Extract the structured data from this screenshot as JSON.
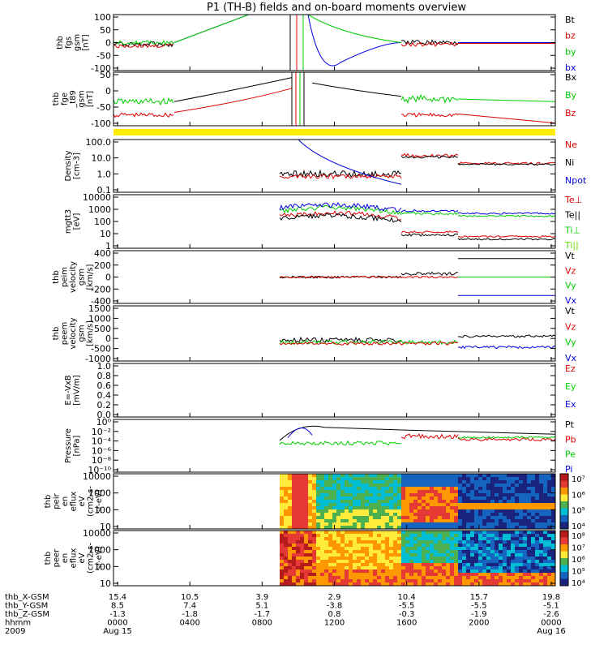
{
  "title": "P1 (TH-B) fields and on-board moments overview",
  "colors": {
    "black": "#000000",
    "red": "#dd0000",
    "green": "#00cc00",
    "blue": "#0000dd",
    "lime": "#66dd00",
    "yellow": "#ffee00"
  },
  "chart_data": [
    {
      "type": "line",
      "id": "fgs",
      "ylabel": [
        "thb",
        "fgs",
        "gsm",
        "[nT]"
      ],
      "yticks": [
        "100",
        "50",
        "0",
        "-50",
        "-100"
      ],
      "ylim": [
        -100,
        100
      ],
      "legend": [
        {
          "label": "Bt",
          "color": "black"
        },
        {
          "label": "bz",
          "color": "red"
        },
        {
          "label": "by",
          "color": "green"
        },
        {
          "label": "bx",
          "color": "blue"
        }
      ]
    },
    {
      "type": "line",
      "id": "fge",
      "ylabel": [
        "thb",
        "fge",
        "_t89",
        "gsm",
        "[nT]"
      ],
      "yticks": [
        "50",
        "0",
        "-50",
        "-100"
      ],
      "ylim": [
        -130,
        100
      ],
      "legend": [
        {
          "label": "Bx",
          "color": "black"
        },
        {
          "label": "By",
          "color": "green"
        },
        {
          "label": "Bz",
          "color": "red"
        }
      ]
    },
    {
      "type": "bar",
      "id": "flag",
      "note": "mode bar"
    },
    {
      "type": "line",
      "id": "density",
      "ylabel": [
        "Density",
        "[cm-3]"
      ],
      "yticks": [
        "100.0",
        "10.0",
        "1.0",
        "0.1"
      ],
      "ylog": true,
      "legend": [
        {
          "label": "Ne",
          "color": "red"
        },
        {
          "label": "Ni",
          "color": "black"
        },
        {
          "label": "Npot",
          "color": "blue"
        }
      ]
    },
    {
      "type": "line",
      "id": "temp",
      "ylabel": [
        "mgtt3",
        "[eV]"
      ],
      "yticks": [
        "10000",
        "1000",
        "100",
        "10",
        "1"
      ],
      "ylog": true,
      "legend": [
        {
          "label": "Te⊥",
          "color": "red"
        },
        {
          "label": "Te||",
          "color": "black"
        },
        {
          "label": "Ti⊥",
          "color": "green"
        },
        {
          "label": "Ti||",
          "color": "lime"
        }
      ]
    },
    {
      "type": "line",
      "id": "peim_vel",
      "ylabel": [
        "thb",
        "peim",
        "velocity",
        "gsm",
        "[km/s]"
      ],
      "yticks": [
        "400",
        "200",
        "0",
        "-200",
        "-400"
      ],
      "ylim": [
        -400,
        400
      ],
      "legend": [
        {
          "label": "Vt",
          "color": "black"
        },
        {
          "label": "Vz",
          "color": "red"
        },
        {
          "label": "Vy",
          "color": "green"
        },
        {
          "label": "Vx",
          "color": "blue"
        }
      ]
    },
    {
      "type": "line",
      "id": "peem_vel",
      "ylabel": [
        "thb",
        "peem",
        "velocity",
        "gsm",
        "[km/s]"
      ],
      "yticks": [
        "1500",
        "1000",
        "500",
        "0",
        "-500",
        "-1000"
      ],
      "ylim": [
        -1000,
        1500
      ],
      "legend": [
        {
          "label": "Vt",
          "color": "black"
        },
        {
          "label": "Vz",
          "color": "red"
        },
        {
          "label": "Vy",
          "color": "green"
        },
        {
          "label": "Vx",
          "color": "blue"
        }
      ]
    },
    {
      "type": "line",
      "id": "efield",
      "ylabel": [
        "E=-VxB",
        "[mV/m]"
      ],
      "yticks": [
        "1.0",
        "0.8",
        "0.6",
        "0.4",
        "0.2",
        "0.0"
      ],
      "ylim": [
        0,
        1
      ],
      "legend": [
        {
          "label": "Ez",
          "color": "red"
        },
        {
          "label": "Ey",
          "color": "green"
        },
        {
          "label": "Ex",
          "color": "blue"
        }
      ]
    },
    {
      "type": "line",
      "id": "pressure",
      "ylabel": [
        "Pressure",
        "[nPa]"
      ],
      "yticks": [
        "10⁰",
        "10⁻²",
        "10⁻⁴",
        "10⁻⁶",
        "10⁻⁸",
        "10⁻¹⁰"
      ],
      "ylog": true,
      "legend": [
        {
          "label": "Pt",
          "color": "black"
        },
        {
          "label": "Pb",
          "color": "red"
        },
        {
          "label": "Pe",
          "color": "green"
        },
        {
          "label": "Pi",
          "color": "blue"
        }
      ]
    },
    {
      "type": "heatmap",
      "id": "peir",
      "ylabel": [
        "thb",
        "peir",
        "en",
        "eflux",
        "eV",
        "(cm2-s-",
        "sr-eV)"
      ],
      "yticks": [
        "10000",
        "1000",
        "100",
        "10"
      ],
      "colorbar": [
        "10⁷",
        "10⁶",
        "10⁵",
        "10⁴"
      ]
    },
    {
      "type": "heatmap",
      "id": "peer",
      "ylabel": [
        "thb",
        "peer",
        "en",
        "eflux",
        "eV",
        "(cm2-s-",
        "sr-eV)"
      ],
      "yticks": [
        "10000",
        "1000",
        "100",
        "10"
      ],
      "colorbar": [
        "10⁸",
        "10⁷",
        "10⁶",
        "10⁵",
        "10⁴"
      ]
    }
  ],
  "xaxis": {
    "rows": [
      {
        "label": "thb_X-GSM",
        "values": [
          "15.4",
          "10.5",
          "3.9",
          "2.9",
          "10.4",
          "15.7",
          "19.8"
        ]
      },
      {
        "label": "thb_Y-GSM",
        "values": [
          "8.5",
          "7.4",
          "5.1",
          "-3.8",
          "-5.5",
          "-5.5",
          "-5.1"
        ]
      },
      {
        "label": "thb_Z-GSM",
        "values": [
          "-1.3",
          "-1.8",
          "-1.7",
          "0.8",
          "-0.3",
          "-1.9",
          "-2.6"
        ]
      },
      {
        "label": "hhmm",
        "values": [
          "0000",
          "0400",
          "0800",
          "1200",
          "1600",
          "2000",
          "0000"
        ]
      },
      {
        "label": "2009",
        "values": [
          "Aug 15",
          "",
          "",
          "",
          "",
          "",
          "Aug 16"
        ]
      }
    ]
  }
}
